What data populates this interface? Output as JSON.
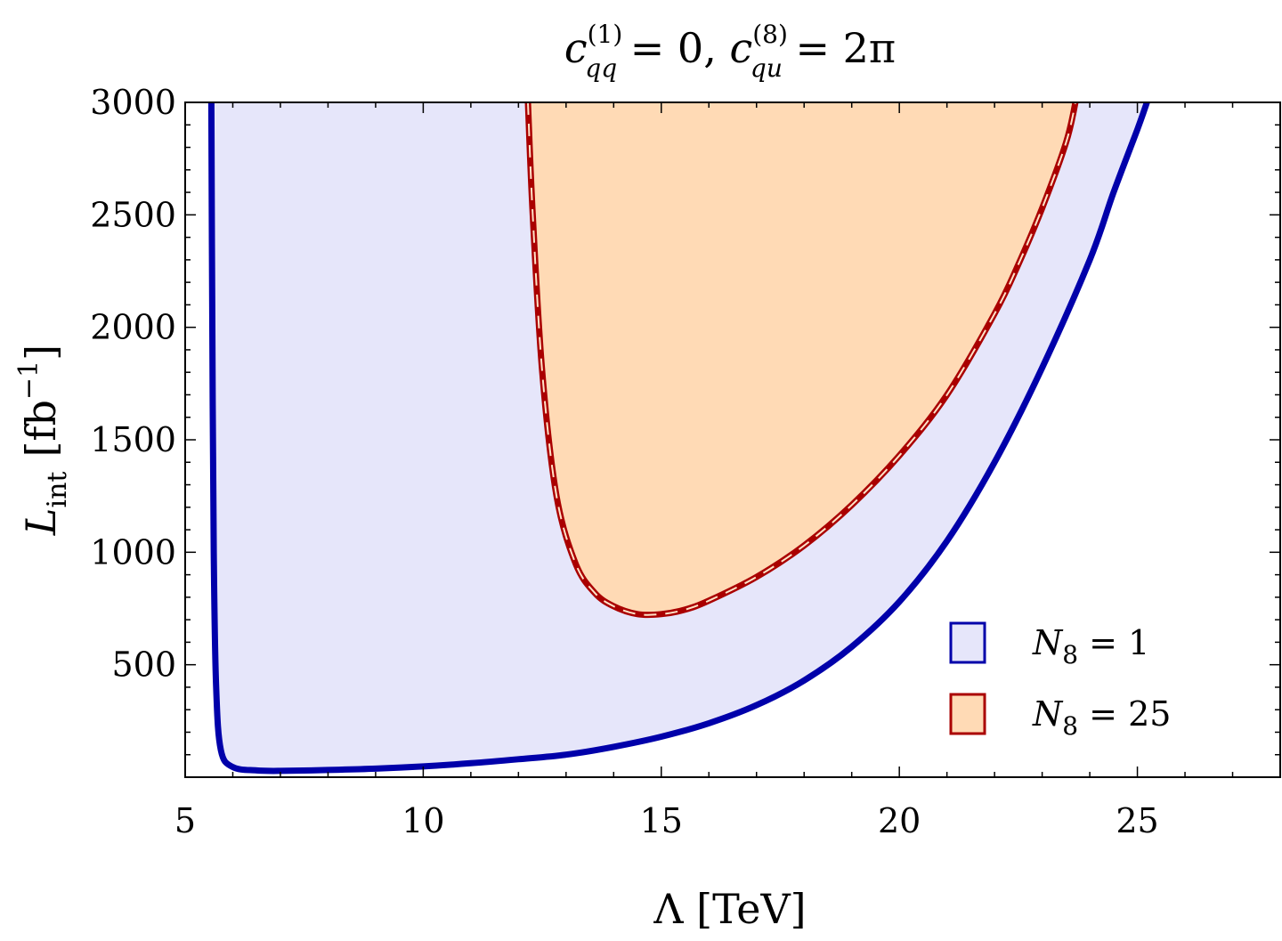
{
  "chart_data": {
    "type": "area",
    "title": "c_qq^(1) = 0, c_qu^(8) = 2π",
    "title_parts": {
      "c1_base": "c",
      "c1_sup": "(1)",
      "c1_sub": "qq",
      "c1_rest": " = 0, ",
      "c2_base": "c",
      "c2_sup": "(8)",
      "c2_sub": "qu",
      "c2_rest": " = 2π"
    },
    "xlabel": "Λ [TeV]",
    "ylabel": "L_int [fb^-1]",
    "ylabel_parts": {
      "base": "L",
      "sub": "int",
      "unit_open": "[fb",
      "unit_sup": "−1",
      "unit_close": "]"
    },
    "xlim": [
      5,
      28
    ],
    "ylim": [
      0,
      3000
    ],
    "xticks": [
      5,
      10,
      15,
      20,
      25
    ],
    "yticks": [
      500,
      1000,
      1500,
      2000,
      2500,
      3000
    ],
    "grid": false,
    "legend_position": "bottom-right",
    "series": [
      {
        "name": "N8 = 1",
        "legend_symbol": "N",
        "legend_sub": "8",
        "legend_rest": " = 1",
        "fill": "#e6e6fa",
        "stroke": "#0000aa",
        "x": [
          5.55,
          5.57,
          5.6,
          5.65,
          5.75,
          6.0,
          6.5,
          7.0,
          8.0,
          9.0,
          10.0,
          11.0,
          12.0,
          13.0,
          14.0,
          15.0,
          16.0,
          17.0,
          18.0,
          19.0,
          20.0,
          21.0,
          22.0,
          23.0,
          24.0,
          24.5,
          25.0,
          25.2
        ],
        "y": [
          3000,
          2000,
          1000,
          400,
          120,
          45,
          30,
          28,
          32,
          38,
          48,
          62,
          80,
          100,
          135,
          180,
          240,
          320,
          430,
          580,
          780,
          1050,
          1400,
          1820,
          2300,
          2600,
          2880,
          3000
        ]
      },
      {
        "name": "N8 = 25",
        "legend_symbol": "N",
        "legend_sub": "8",
        "legend_rest": " = 25",
        "fill": "#ffdab5",
        "stroke": "#aa0000",
        "x": [
          12.2,
          12.3,
          12.5,
          12.8,
          13.2,
          13.6,
          14.0,
          14.5,
          15.0,
          15.5,
          16.0,
          17.0,
          18.0,
          19.0,
          20.0,
          21.0,
          22.0,
          22.5,
          23.0,
          23.5,
          23.7
        ],
        "y": [
          3000,
          2500,
          1800,
          1250,
          950,
          820,
          760,
          725,
          725,
          745,
          785,
          890,
          1030,
          1210,
          1430,
          1700,
          2060,
          2280,
          2530,
          2820,
          3000
        ]
      }
    ]
  }
}
